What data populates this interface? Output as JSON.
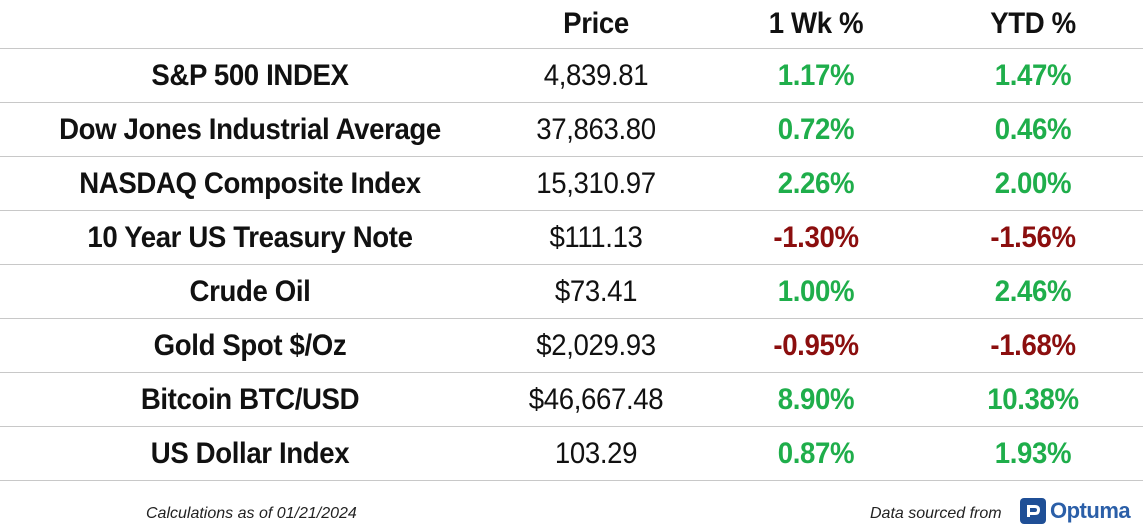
{
  "chart_data": {
    "type": "table",
    "columns": [
      "",
      "Price",
      "1 Wk %",
      "YTD %"
    ],
    "rows": [
      {
        "name": "S&P 500 INDEX",
        "price": "4,839.81",
        "week": "1.17%",
        "ytd": "1.47%"
      },
      {
        "name": "Dow Jones Industrial Average",
        "price": "37,863.80",
        "week": "0.72%",
        "ytd": "0.46%"
      },
      {
        "name": "NASDAQ Composite Index",
        "price": "15,310.97",
        "week": "2.26%",
        "ytd": "2.00%"
      },
      {
        "name": "10 Year US Treasury Note",
        "price": "$111.13",
        "week": "-1.30%",
        "ytd": "-1.56%"
      },
      {
        "name": "Crude Oil",
        "price": "$73.41",
        "week": "1.00%",
        "ytd": "2.46%"
      },
      {
        "name": "Gold Spot $/Oz",
        "price": "$2,029.93",
        "week": "-0.95%",
        "ytd": "-1.68%"
      },
      {
        "name": "Bitcoin BTC/USD",
        "price": "$46,667.48",
        "week": "8.90%",
        "ytd": "10.38%"
      },
      {
        "name": "US Dollar Index",
        "price": "103.29",
        "week": "0.87%",
        "ytd": "1.93%"
      }
    ],
    "colors": {
      "positive": "#1fae4b",
      "negative": "#8b0e0e"
    }
  },
  "footer": {
    "calc_note": "Calculations as of 01/21/2024",
    "source_note": "Data sourced from",
    "logo_text": "Optuma",
    "logo_icon": "optuma-logo-icon"
  }
}
